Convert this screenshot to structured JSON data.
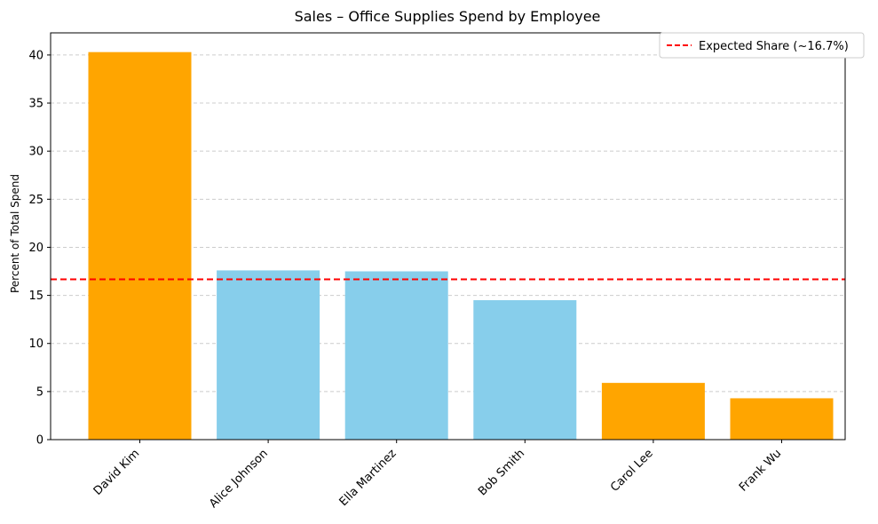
{
  "chart_data": {
    "type": "bar",
    "title": "Sales – Office Supplies Spend by Employee",
    "xlabel": "",
    "ylabel": "Percent of Total Spend",
    "categories": [
      "David Kim",
      "Alice Johnson",
      "Ella Martinez",
      "Bob Smith",
      "Carol Lee",
      "Frank Wu"
    ],
    "values": [
      40.3,
      17.6,
      17.5,
      14.5,
      5.9,
      4.3
    ],
    "bar_colors": [
      "#ffa500",
      "#87ceeb",
      "#87ceeb",
      "#87ceeb",
      "#ffa500",
      "#ffa500"
    ],
    "ylim": [
      0,
      42.3
    ],
    "yticks": [
      0,
      5,
      10,
      15,
      20,
      25,
      30,
      35,
      40
    ],
    "grid": "y-dashed",
    "reference_line": {
      "value": 16.667,
      "label": "Expected Share (~16.7%)",
      "color": "#ff0000",
      "style": "dashed"
    },
    "legend": {
      "placement": "top-right"
    }
  }
}
